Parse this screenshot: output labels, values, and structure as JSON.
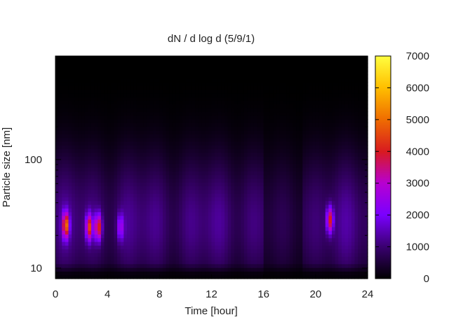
{
  "chart_data": {
    "type": "heatmap",
    "title": "dN / d log d (5/9/1)",
    "xlabel": "Time [hour]",
    "ylabel": "Particle size [nm]",
    "x_range": [
      0,
      24
    ],
    "x_ticks": [
      0,
      4,
      8,
      12,
      16,
      20,
      24
    ],
    "x_tick_labels": [
      "0",
      "4",
      "8",
      "12",
      "16",
      "20",
      "24"
    ],
    "y_scale": "log",
    "y_range": [
      8,
      900
    ],
    "y_ticks": [
      10,
      100
    ],
    "y_tick_labels": [
      "10",
      "100"
    ],
    "colorbar": {
      "range": [
        0,
        7000
      ],
      "ticks": [
        0,
        1000,
        2000,
        3000,
        4000,
        5000,
        6000,
        7000
      ],
      "tick_labels": [
        "0",
        "1000",
        "2000",
        "3000",
        "4000",
        "5000",
        "6000",
        "7000"
      ],
      "colormap": [
        "#000000",
        "#3a0070",
        "#7a00ff",
        "#b800d0",
        "#d81a20",
        "#f07000",
        "#ffc000",
        "#ffff40"
      ]
    },
    "background_level": 1200,
    "features": [
      {
        "time": 0.8,
        "size": 25,
        "peak": 4800
      },
      {
        "time": 2.6,
        "size": 24,
        "peak": 4300
      },
      {
        "time": 3.3,
        "size": 24,
        "peak": 4300
      },
      {
        "time": 5.0,
        "size": 24,
        "peak": 2600
      },
      {
        "time": 21.1,
        "size": 28,
        "peak": 4100
      }
    ]
  }
}
